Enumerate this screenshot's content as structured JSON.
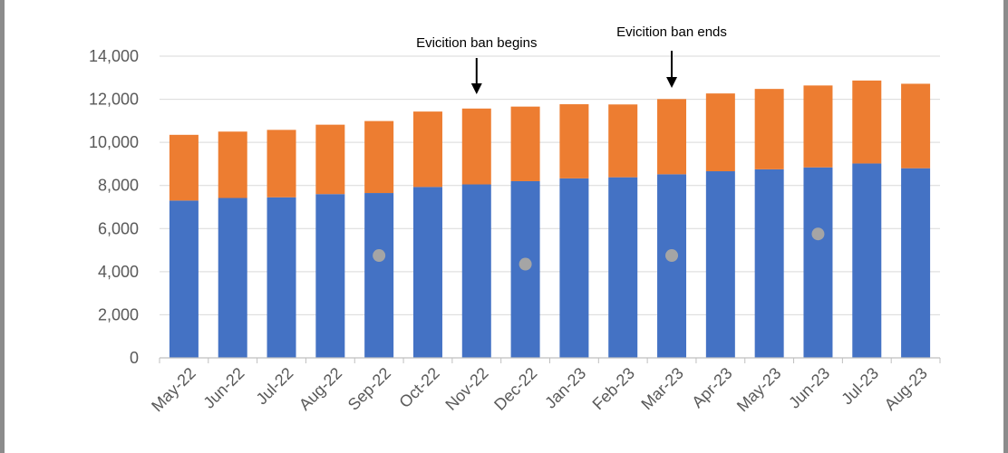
{
  "chart_data": {
    "type": "bar",
    "stacked": true,
    "categories": [
      "May-22",
      "Jun-22",
      "Jul-22",
      "Aug-22",
      "Sep-22",
      "Oct-22",
      "Nov-22",
      "Dec-22",
      "Jan-23",
      "Feb-23",
      "Mar-23",
      "Apr-23",
      "May-23",
      "Jun-23",
      "Jul-23",
      "Aug-23"
    ],
    "series": [
      {
        "color": "#4472c4",
        "values": [
          7300,
          7420,
          7450,
          7600,
          7650,
          7930,
          8050,
          8200,
          8330,
          8380,
          8520,
          8660,
          8750,
          8840,
          9020,
          8800
        ]
      },
      {
        "color": "#ed7d31",
        "values": [
          3050,
          3080,
          3130,
          3220,
          3340,
          3500,
          3520,
          3460,
          3440,
          3380,
          3490,
          3610,
          3730,
          3800,
          3850,
          3920
        ]
      },
      {
        "type": "scatter",
        "color": "#a5a5a5",
        "points": [
          {
            "x": "Sep-22",
            "y": 4750
          },
          {
            "x": "Dec-22",
            "y": 4350
          },
          {
            "x": "Mar-23",
            "y": 4750
          },
          {
            "x": "Jun-23",
            "y": 5750
          }
        ]
      }
    ],
    "ylim": [
      0,
      14000
    ],
    "yticks": [
      0,
      2000,
      4000,
      6000,
      8000,
      10000,
      12000,
      14000
    ],
    "ytick_labels": [
      "0",
      "2,000",
      "4,000",
      "6,000",
      "8,000",
      "10,000",
      "12,000",
      "14,000"
    ],
    "grid": true,
    "annotations": [
      {
        "text": "Evicition ban begins",
        "x": "Nov-22"
      },
      {
        "text": "Evicition ban ends",
        "x": "Mar-23"
      }
    ]
  }
}
